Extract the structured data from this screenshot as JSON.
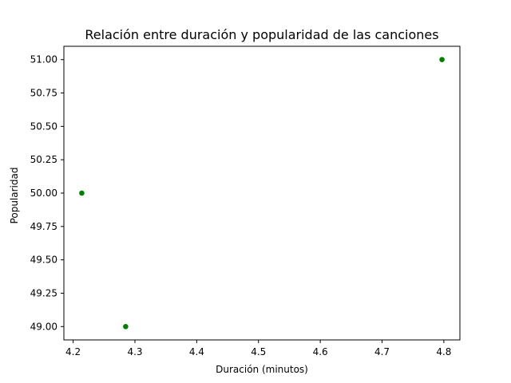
{
  "chart_data": {
    "type": "scatter",
    "title": "Relación entre duración y popularidad de las canciones",
    "xlabel": "Duración (minutos)",
    "ylabel": "Popularidad",
    "xlim": [
      4.185,
      4.826
    ],
    "ylim": [
      48.9,
      51.1
    ],
    "xticks": [
      4.2,
      4.3,
      4.4,
      4.5,
      4.6,
      4.7,
      4.8
    ],
    "xtick_labels": [
      "4.2",
      "4.3",
      "4.4",
      "4.5",
      "4.6",
      "4.7",
      "4.8"
    ],
    "yticks": [
      49.0,
      49.25,
      49.5,
      49.75,
      50.0,
      50.25,
      50.5,
      50.75,
      51.0
    ],
    "ytick_labels": [
      "49.00",
      "49.25",
      "49.50",
      "49.75",
      "50.00",
      "50.25",
      "50.50",
      "50.75",
      "51.00"
    ],
    "grid": false,
    "legend": false,
    "marker_color": "#008000",
    "series": [
      {
        "x": [
          4.214,
          4.285,
          4.797
        ],
        "y": [
          50.0,
          49.0,
          51.0
        ]
      }
    ]
  }
}
